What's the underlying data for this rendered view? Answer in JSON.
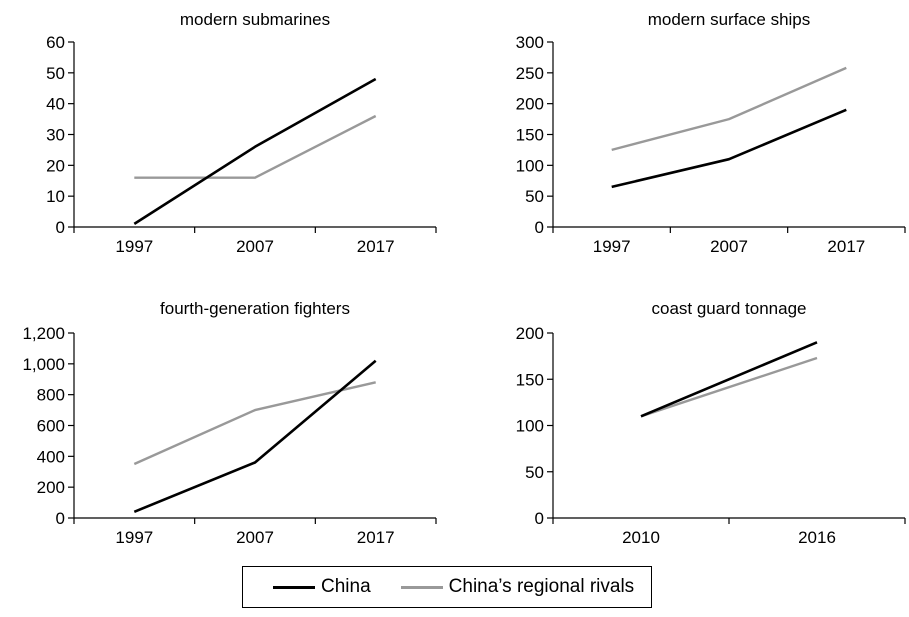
{
  "chart_data": [
    {
      "type": "line",
      "title": "modern submarines",
      "categories": [
        "1997",
        "2007",
        "2017"
      ],
      "ylim": [
        0,
        60
      ],
      "yticks": [
        "0",
        "10",
        "20",
        "30",
        "40",
        "50",
        "60"
      ],
      "series": [
        {
          "name": "China",
          "values": [
            1,
            26,
            48
          ]
        },
        {
          "name": "China’s regional rivals",
          "values": [
            16,
            16,
            36
          ]
        }
      ]
    },
    {
      "type": "line",
      "title": "modern surface ships",
      "categories": [
        "1997",
        "2007",
        "2017"
      ],
      "ylim": [
        0,
        300
      ],
      "yticks": [
        "0",
        "50",
        "100",
        "150",
        "200",
        "250",
        "300"
      ],
      "series": [
        {
          "name": "China",
          "values": [
            65,
            110,
            190
          ]
        },
        {
          "name": "China’s regional rivals",
          "values": [
            125,
            175,
            258
          ]
        }
      ]
    },
    {
      "type": "line",
      "title": "fourth-generation fighters",
      "categories": [
        "1997",
        "2007",
        "2017"
      ],
      "ylim": [
        0,
        1200
      ],
      "yticks": [
        "0",
        "200",
        "400",
        "600",
        "800",
        "1,000",
        "1,200"
      ],
      "series": [
        {
          "name": "China",
          "values": [
            40,
            360,
            1020
          ]
        },
        {
          "name": "China’s regional rivals",
          "values": [
            350,
            700,
            880
          ]
        }
      ]
    },
    {
      "type": "line",
      "title": "coast guard tonnage",
      "categories": [
        "2010",
        "2016"
      ],
      "ylim": [
        0,
        200
      ],
      "yticks": [
        "0",
        "50",
        "100",
        "150",
        "200"
      ],
      "series": [
        {
          "name": "China",
          "values": [
            110,
            190
          ]
        },
        {
          "name": "China’s regional rivals",
          "values": [
            110,
            173
          ]
        }
      ]
    }
  ],
  "legend": {
    "china_label": "China",
    "rivals_label": "China’s regional rivals"
  },
  "colors": {
    "china": "#000000",
    "rivals": "#999999",
    "axis": "#000000"
  }
}
